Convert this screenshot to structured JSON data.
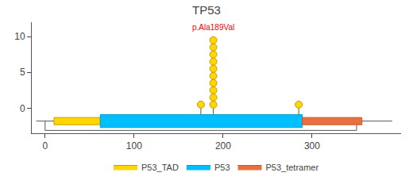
{
  "chart_data": {
    "type": "lollipop",
    "title": "TP53",
    "xlim": [
      -15,
      400
    ],
    "ylim": [
      -3.5,
      12
    ],
    "xticks": [
      0,
      100,
      200,
      300
    ],
    "yticks": [
      0,
      5,
      10
    ],
    "grid": false,
    "legend": "bottom",
    "domains": [
      {
        "name": "P53_TAD",
        "start": 10,
        "end": 62,
        "y": -2.3,
        "height": 1.0,
        "color": "#FFD700",
        "edge_color": "#CC9900"
      },
      {
        "name": "P53",
        "start": 62,
        "end": 289,
        "y": -2.7,
        "height": 1.8,
        "color": "#00BFFF",
        "edge_color": "#009ECC"
      },
      {
        "name": "P53_tetramer",
        "start": 289,
        "end": 356,
        "y": -2.3,
        "height": 1.0,
        "color": "#E87040",
        "edge_color": "#CC5520"
      }
    ],
    "backbone": {
      "y": -1.8,
      "start": -10,
      "end": 390,
      "color": "#555555"
    },
    "bracket": {
      "y": -3.1,
      "start": 0,
      "end": 350
    },
    "variants": {
      "x": [
        175,
        189,
        285
      ],
      "values": [
        1,
        10,
        1
      ],
      "color": "#FFD700",
      "edge_color": "#CC9900",
      "stem_color": "#555555"
    },
    "annotations": [
      {
        "text": "p.Ala189Val",
        "x": 189,
        "y": 10.5,
        "color": "red"
      }
    ]
  }
}
